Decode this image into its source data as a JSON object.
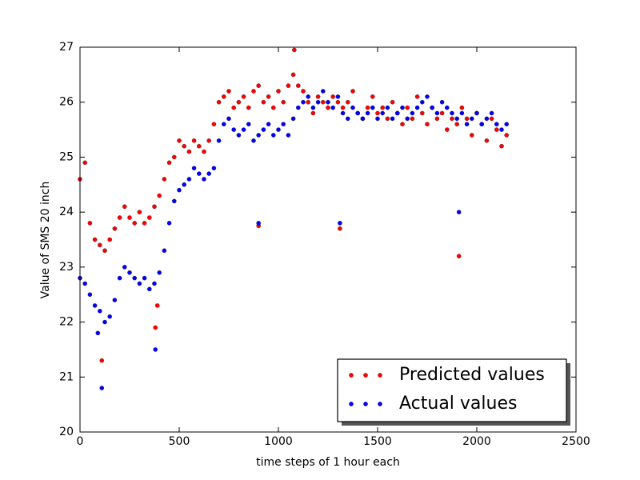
{
  "chart_data": {
    "type": "scatter",
    "xlabel": "time steps of 1 hour each",
    "ylabel": "Value of SMS 20 inch",
    "xlim": [
      0,
      2500
    ],
    "xticks": [
      0,
      500,
      1000,
      1500,
      2000,
      2500
    ],
    "ylim": [
      20,
      27
    ],
    "yticks": [
      20,
      21,
      22,
      23,
      24,
      25,
      26,
      27
    ],
    "grid": false,
    "legend": "lower right",
    "series": [
      {
        "name": "Predicted values",
        "color": "#ff0000",
        "x": [
          0,
          25,
          50,
          75,
          100,
          125,
          150,
          175,
          200,
          225,
          250,
          275,
          300,
          325,
          350,
          375,
          400,
          425,
          450,
          475,
          500,
          525,
          550,
          575,
          600,
          625,
          650,
          675,
          700,
          725,
          750,
          775,
          800,
          825,
          850,
          875,
          900,
          925,
          950,
          975,
          1000,
          1025,
          1050,
          1075,
          1100,
          1125,
          1150,
          1175,
          1200,
          1225,
          1250,
          1275,
          1300,
          1325,
          1350,
          1375,
          1400,
          1425,
          1450,
          1475,
          1500,
          1525,
          1550,
          1575,
          1600,
          1625,
          1650,
          1675,
          1700,
          1725,
          1750,
          1775,
          1800,
          1825,
          1850,
          1875,
          1900,
          1925,
          1950,
          1975,
          2000,
          2025,
          2050,
          2075,
          2100,
          2125,
          2150,
          110,
          380,
          390,
          900,
          1310,
          1910,
          1080
        ],
        "values": [
          24.6,
          24.9,
          23.8,
          23.5,
          23.4,
          23.3,
          23.5,
          23.7,
          23.9,
          24.1,
          23.9,
          23.8,
          24.0,
          23.8,
          23.9,
          24.1,
          24.3,
          24.6,
          24.9,
          25.0,
          25.3,
          25.2,
          25.1,
          25.3,
          25.2,
          25.1,
          25.3,
          25.6,
          26.0,
          26.1,
          26.2,
          25.9,
          26.0,
          26.1,
          25.9,
          26.2,
          26.3,
          26.0,
          26.1,
          25.9,
          26.2,
          26.0,
          26.3,
          26.5,
          26.3,
          26.2,
          26.0,
          25.8,
          26.1,
          26.0,
          25.9,
          26.1,
          26.0,
          25.9,
          26.0,
          26.2,
          25.8,
          25.7,
          25.9,
          26.1,
          25.8,
          25.9,
          25.7,
          26.0,
          25.8,
          25.6,
          25.9,
          25.7,
          26.1,
          25.8,
          25.6,
          25.9,
          25.7,
          25.8,
          25.5,
          25.7,
          25.6,
          25.9,
          25.7,
          25.4,
          25.8,
          25.6,
          25.3,
          25.7,
          25.5,
          25.2,
          25.4,
          21.3,
          21.9,
          22.3,
          23.75,
          23.7,
          23.2,
          26.95
        ]
      },
      {
        "name": "Actual values",
        "color": "#0000ff",
        "x": [
          0,
          25,
          50,
          75,
          100,
          125,
          150,
          175,
          200,
          225,
          250,
          275,
          300,
          325,
          350,
          375,
          400,
          425,
          450,
          475,
          500,
          525,
          550,
          575,
          600,
          625,
          650,
          675,
          700,
          725,
          750,
          775,
          800,
          825,
          850,
          875,
          900,
          925,
          950,
          975,
          1000,
          1025,
          1050,
          1075,
          1100,
          1125,
          1150,
          1175,
          1200,
          1225,
          1250,
          1275,
          1300,
          1325,
          1350,
          1375,
          1400,
          1425,
          1450,
          1475,
          1500,
          1525,
          1550,
          1575,
          1600,
          1625,
          1650,
          1675,
          1700,
          1725,
          1750,
          1775,
          1800,
          1825,
          1850,
          1875,
          1900,
          1925,
          1950,
          1975,
          2000,
          2025,
          2050,
          2075,
          2100,
          2125,
          2150,
          90,
          110,
          380,
          900,
          1310,
          1910
        ],
        "values": [
          22.8,
          22.7,
          22.5,
          22.3,
          22.2,
          22.0,
          22.1,
          22.4,
          22.8,
          23.0,
          22.9,
          22.8,
          22.7,
          22.8,
          22.6,
          22.7,
          22.9,
          23.3,
          23.8,
          24.2,
          24.4,
          24.5,
          24.6,
          24.8,
          24.7,
          24.6,
          24.7,
          24.8,
          25.3,
          25.6,
          25.7,
          25.5,
          25.4,
          25.5,
          25.6,
          25.3,
          25.4,
          25.5,
          25.6,
          25.4,
          25.5,
          25.6,
          25.4,
          25.7,
          25.9,
          26.0,
          26.1,
          25.9,
          26.0,
          26.2,
          26.0,
          25.9,
          26.1,
          25.8,
          25.7,
          25.9,
          25.8,
          25.7,
          25.8,
          25.9,
          25.7,
          25.8,
          25.9,
          25.7,
          25.8,
          25.9,
          25.7,
          25.8,
          25.9,
          26.0,
          26.1,
          25.9,
          25.8,
          26.0,
          25.9,
          25.8,
          25.7,
          25.8,
          25.6,
          25.7,
          25.8,
          25.6,
          25.7,
          25.8,
          25.6,
          25.5,
          25.6,
          21.8,
          20.8,
          21.5,
          23.8,
          23.8,
          24.0
        ]
      }
    ]
  }
}
